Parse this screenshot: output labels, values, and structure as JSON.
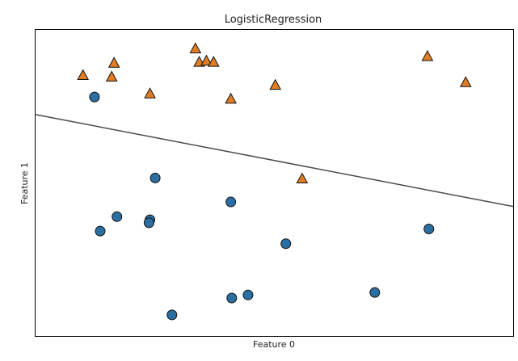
{
  "chart_data": {
    "type": "scatter",
    "title": "LogisticRegression",
    "xlabel": "Feature 0",
    "ylabel": "Feature 1",
    "xlim": [
      0,
      100
    ],
    "ylim": [
      0,
      100
    ],
    "grid": false,
    "ticks": false,
    "colors": {
      "class0": "#2b6ea1",
      "class1": "#e07d24",
      "edge": "#111111",
      "boundary": "#4a4a4a"
    },
    "series": [
      {
        "marker": "circle",
        "color": "#2b6ea1",
        "points": [
          [
            12.4,
            78.0
          ],
          [
            25.1,
            51.6
          ],
          [
            17.1,
            39.0
          ],
          [
            24.0,
            38.0
          ],
          [
            23.8,
            37.0
          ],
          [
            13.6,
            34.3
          ],
          [
            40.9,
            43.8
          ],
          [
            52.4,
            30.2
          ],
          [
            41.1,
            12.5
          ],
          [
            44.5,
            13.5
          ],
          [
            28.6,
            7.0
          ],
          [
            71.0,
            14.3
          ],
          [
            82.3,
            35.0
          ]
        ]
      },
      {
        "marker": "triangle",
        "color": "#e07d24",
        "points": [
          [
            10.0,
            85.0
          ],
          [
            16.5,
            89.0
          ],
          [
            16.0,
            84.5
          ],
          [
            24.0,
            79.0
          ],
          [
            33.5,
            93.7
          ],
          [
            34.3,
            89.3
          ],
          [
            35.8,
            89.7
          ],
          [
            37.3,
            89.3
          ],
          [
            40.9,
            77.3
          ],
          [
            50.2,
            81.8
          ],
          [
            55.8,
            51.3
          ],
          [
            82.0,
            91.2
          ],
          [
            90.0,
            82.7
          ]
        ]
      }
    ],
    "decision_boundary": {
      "x": [
        0,
        100
      ],
      "y": [
        72.3,
        42.3
      ]
    }
  }
}
